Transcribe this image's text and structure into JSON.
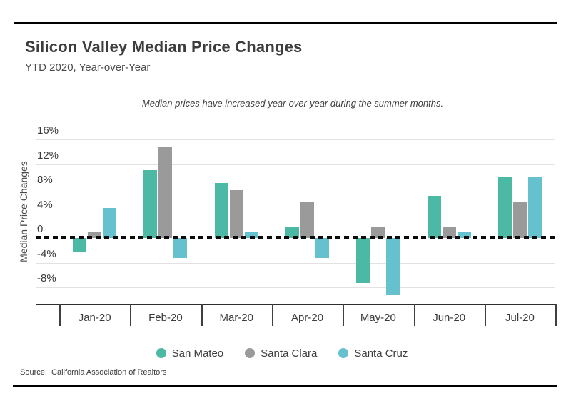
{
  "header": {
    "title": "Silicon Valley Median Price Changes",
    "subtitle": "YTD 2020, Year-over-Year"
  },
  "annotation": "Median prices have increased year-over-year during the summer months.",
  "source_label": "Source:  California Association of Realtors",
  "colors": {
    "san_mateo": "#4bb9a3",
    "santa_clara": "#9a9a9a",
    "santa_cruz": "#65c1cd",
    "axis_line": "#2f2f2f",
    "gridline": "#e2e2e2",
    "rule": "#000000",
    "text_dark": "#3d3d3d"
  },
  "chart_data": {
    "type": "bar",
    "title": "Silicon Valley Median Price Changes",
    "subtitle": "YTD 2020, Year-over-Year",
    "annotation": "Median prices have increased year-over-year during the summer months.",
    "xlabel": "",
    "ylabel": "Median Price Changes",
    "categories": [
      "Jan-20",
      "Feb-20",
      "Mar-20",
      "Apr-20",
      "May-20",
      "Jun-20",
      "Jul-20"
    ],
    "series": [
      {
        "name": "San Mateo",
        "color": "#4bb9a3",
        "values": [
          -2.2,
          11.0,
          8.9,
          1.9,
          -7.3,
          6.8,
          9.9
        ]
      },
      {
        "name": "Santa Clara",
        "color": "#9a9a9a",
        "values": [
          0.9,
          14.8,
          7.8,
          5.8,
          1.9,
          1.9,
          5.8
        ]
      },
      {
        "name": "Santa Cruz",
        "color": "#65c1cd",
        "values": [
          4.9,
          -3.2,
          1.0,
          -3.2,
          -9.3,
          1.0,
          9.9
        ]
      }
    ],
    "y_ticks": [
      {
        "value": 16,
        "label": "16%"
      },
      {
        "value": 12,
        "label": "12%"
      },
      {
        "value": 8,
        "label": "8%"
      },
      {
        "value": 4,
        "label": "4%"
      },
      {
        "value": 0,
        "label": "0"
      },
      {
        "value": -4,
        "label": "-4%"
      },
      {
        "value": -8,
        "label": "-8%"
      }
    ],
    "ylim": [
      -11,
      17.5
    ],
    "grid": true,
    "zero_line_style": "dashed",
    "legend_position": "bottom"
  }
}
